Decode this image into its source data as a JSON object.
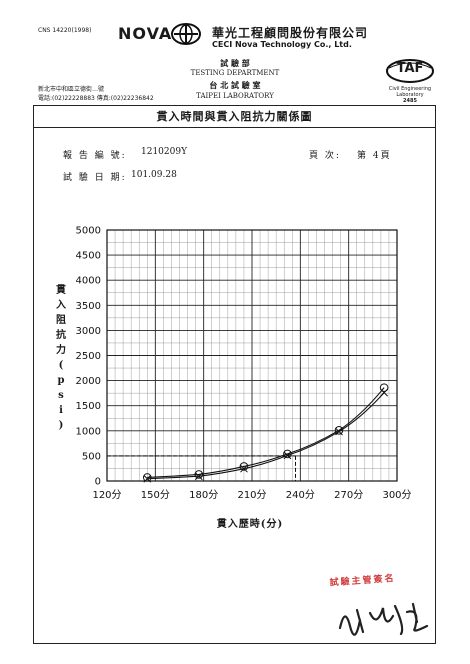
{
  "header": {
    "standard": "CNS 14220(1998)",
    "brand": "NOVA",
    "company_cn": "華光工程顧問股份有限公司",
    "company_en": "CECI Nova Technology Co., Ltd.",
    "dept_cn": "試 驗 部",
    "dept_en": "TESTING DEPARTMENT",
    "lab_cn": "台 北 試 驗 室",
    "lab_en": "TAIPEI LABORATORY",
    "address": "新北市中和區立德街…號",
    "phone": "電話:(02)22228883  傳真:(02)22236842",
    "taf_logo": "TAF",
    "taf_sub1": "Civil Engineering",
    "taf_sub2": "Laboratory",
    "taf_num": "2485"
  },
  "report": {
    "title": "貫入時間與貫入阻抗力關係圖",
    "report_no_label": "報 告 編 號:",
    "report_no": "1210209Y",
    "page_label": "頁   次:",
    "page_value": "第 4頁",
    "date_label": "試 驗 日 期:",
    "date_value": "101.09.28"
  },
  "chart_data": {
    "type": "line",
    "title": "貫入時間與貫入阻抗力關係圖",
    "xlabel": "貫入歷時(分)",
    "ylabel": "貫入阻抗力(psi)",
    "xlim": [
      120,
      300
    ],
    "ylim": [
      0,
      5000
    ],
    "x_ticks": [
      "120分",
      "150分",
      "180分",
      "210分",
      "240分",
      "270分",
      "300分"
    ],
    "y_ticks": [
      "0",
      "500",
      "1000",
      "1500",
      "2000",
      "2500",
      "3000",
      "3500",
      "4000",
      "4500",
      "5000"
    ],
    "grid": true,
    "reference_level": 500,
    "reference_time": 237,
    "series": [
      {
        "marker": "circle",
        "x": [
          145,
          177,
          205,
          232,
          264,
          292
        ],
        "y": [
          70,
          130,
          290,
          540,
          1010,
          1860
        ]
      },
      {
        "marker": "x",
        "x": [
          145,
          177,
          205,
          232,
          264,
          292
        ],
        "y": [
          45,
          95,
          245,
          510,
          985,
          1760
        ]
      }
    ]
  },
  "stamp": {
    "text": "試驗主管簽名",
    "color": "#d23a3a"
  }
}
